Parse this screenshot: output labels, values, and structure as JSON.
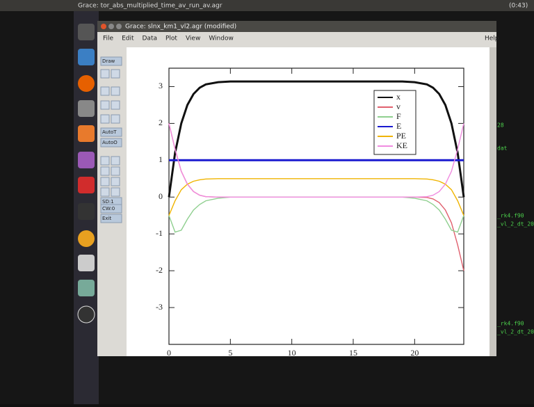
{
  "desktop": {
    "top_title": "Grace: tor_abs_multiplied_time_av_run_av.agr",
    "clock": "(0:43)"
  },
  "window": {
    "title": "Grace: slnx_km1_vl2.agr (modified)",
    "menu": [
      "File",
      "Edit",
      "Data",
      "Plot",
      "View",
      "Window"
    ],
    "help": "Help",
    "toolbox": [
      "Draw",
      "AutoT",
      "AutoO",
      "SD:1",
      "CW:0",
      "Exit"
    ]
  },
  "terminal": [
    "28",
    "dat",
    "_rk4.f90",
    "_vl_2_dt_20",
    "_rk4.f90",
    "_vl_2_dt_20"
  ],
  "chart_data": {
    "type": "line",
    "x": [
      0,
      0.5,
      1,
      1.5,
      2,
      2.5,
      3,
      4,
      5,
      8,
      12,
      16,
      19,
      20,
      21,
      21.5,
      22,
      22.5,
      23,
      23.5,
      24
    ],
    "series": [
      {
        "name": "x",
        "color": "#111111",
        "values": [
          0,
          1.2,
          2.0,
          2.5,
          2.8,
          2.97,
          3.06,
          3.12,
          3.14,
          3.14,
          3.14,
          3.14,
          3.14,
          3.12,
          3.06,
          2.97,
          2.8,
          2.5,
          2.0,
          1.2,
          0
        ]
      },
      {
        "name": "v",
        "color": "#e0606e",
        "values": [
          2,
          1.3,
          0.7,
          0.35,
          0.15,
          0.05,
          0.01,
          0,
          0,
          0,
          0,
          0,
          0,
          0,
          -0.01,
          -0.05,
          -0.15,
          -0.35,
          -0.7,
          -1.3,
          -2
        ]
      },
      {
        "name": "F",
        "color": "#8fcf8f",
        "values": [
          -0.5,
          -0.95,
          -0.9,
          -0.6,
          -0.35,
          -0.2,
          -0.1,
          -0.03,
          0,
          0,
          0,
          0,
          0,
          -0.03,
          -0.1,
          -0.2,
          -0.35,
          -0.6,
          -0.9,
          -0.95,
          -0.5
        ]
      },
      {
        "name": "E",
        "color": "#1a1ad0",
        "values": [
          1,
          1,
          1,
          1,
          1,
          1,
          1,
          1,
          1,
          1,
          1,
          1,
          1,
          1,
          1,
          1,
          1,
          1,
          1,
          1,
          1
        ]
      },
      {
        "name": "PE",
        "color": "#f0b400",
        "values": [
          -0.5,
          -0.1,
          0.2,
          0.35,
          0.43,
          0.47,
          0.49,
          0.5,
          0.5,
          0.5,
          0.5,
          0.5,
          0.5,
          0.5,
          0.49,
          0.47,
          0.43,
          0.35,
          0.2,
          -0.1,
          -0.5
        ]
      },
      {
        "name": "KE",
        "color": "#f08ce0",
        "values": [
          2,
          1.3,
          0.7,
          0.35,
          0.15,
          0.05,
          0.01,
          0,
          0,
          0,
          0,
          0,
          0,
          0,
          0.01,
          0.05,
          0.15,
          0.35,
          0.7,
          1.3,
          2
        ]
      }
    ],
    "xlim": [
      0,
      24
    ],
    "ylim": [
      -4,
      3.5
    ],
    "xticks": [
      0,
      5,
      10,
      15,
      20
    ],
    "yticks": [
      -3,
      -2,
      -1,
      0,
      1,
      2,
      3
    ],
    "legend": "upper right"
  }
}
